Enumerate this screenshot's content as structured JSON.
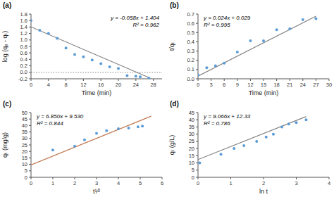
{
  "chart_data": [
    {
      "type": "scatter",
      "title": "(a)",
      "xlabel": "Time (min)",
      "ylabel": "log (qₑ - qₜ)",
      "annotations": [
        "y = -0.058x + 1.404",
        "R² = 0.962"
      ],
      "series": [
        {
          "type": "scatter",
          "color": "#5b9bd5",
          "x": [
            0,
            2,
            4,
            6,
            8,
            10,
            12,
            14,
            16,
            18,
            20,
            22,
            24,
            25,
            27
          ],
          "values": [
            1.6,
            1.3,
            1.2,
            1.05,
            0.75,
            0.55,
            0.48,
            0.38,
            0.27,
            0.17,
            0.12,
            -0.1,
            -0.12,
            -0.14,
            -0.18
          ]
        },
        {
          "type": "line",
          "color": "#808080",
          "x": [
            0,
            27
          ],
          "values": [
            1.404,
            -0.162
          ]
        },
        {
          "type": "line",
          "line_style": "dotted",
          "color": "#808080",
          "x": [
            0,
            30
          ],
          "values": [
            0,
            0
          ]
        }
      ],
      "xlim": [
        0,
        30
      ],
      "ylim": [
        -0.2,
        1.8
      ],
      "xticks": [
        0,
        4,
        8,
        12,
        16,
        20,
        24,
        28
      ],
      "yticks": [
        -0.2,
        {
          "value": 0.0,
          "label": "0.0"
        },
        0.2,
        0.4,
        0.6,
        0.8,
        {
          "value": 1.0,
          "label": "1.0"
        },
        1.2,
        1.4,
        1.6,
        1.8
      ],
      "grid": false
    },
    {
      "type": "scatter",
      "title": "(b)",
      "xlabel": "Time (min)",
      "ylabel": "t/qₜ",
      "annotations": [
        "y = 0.024x + 0.029",
        "R² = 0.995"
      ],
      "series": [
        {
          "type": "scatter",
          "color": "#5b9bd5",
          "x": [
            0,
            2,
            4,
            6,
            9,
            12,
            15,
            18,
            21,
            24,
            27
          ],
          "values": [
            0.04,
            0.12,
            0.14,
            0.17,
            0.29,
            0.41,
            0.41,
            0.53,
            0.54,
            0.64,
            0.65
          ]
        },
        {
          "type": "line",
          "color": "#808080",
          "x": [
            0,
            27
          ],
          "values": [
            0.029,
            0.677
          ]
        }
      ],
      "xlim": [
        0,
        30
      ],
      "ylim": [
        0.0,
        0.7
      ],
      "xticks": [
        0,
        3,
        6,
        9,
        12,
        15,
        18,
        21,
        24,
        27,
        30
      ],
      "yticks": [
        {
          "value": 0.0,
          "label": "0.0"
        },
        0.1,
        0.2,
        0.3,
        0.4,
        0.5,
        0.6,
        0.7
      ],
      "grid": false
    },
    {
      "type": "scatter",
      "title": "(c)",
      "xlabel": "t¹⁄²",
      "ylabel": "qₜ (mg/g)",
      "annotations": [
        "y = 6.850x + 9.530",
        "R² = 0.844"
      ],
      "series": [
        {
          "type": "scatter",
          "color": "#5b9bd5",
          "x": [
            1.0,
            2.0,
            2.45,
            3.0,
            3.46,
            4.0,
            4.47,
            4.9,
            5.1
          ],
          "values": [
            21.0,
            24.0,
            29.0,
            34.0,
            36.0,
            37.5,
            38.0,
            39.0,
            39.5
          ]
        },
        {
          "type": "line",
          "color": "#c07850",
          "x": [
            0,
            5.5
          ],
          "values": [
            9.53,
            47.205
          ]
        }
      ],
      "xlim": [
        0,
        6
      ],
      "ylim": [
        0,
        50
      ],
      "xticks": [
        0,
        1,
        2,
        3,
        4,
        5,
        6
      ],
      "yticks": [
        0,
        5,
        10,
        15,
        20,
        25,
        30,
        35,
        40,
        45,
        50
      ],
      "grid": false
    },
    {
      "type": "scatter",
      "title": "(d)",
      "xlabel": "ln t",
      "ylabel": "qₜ (g/L)",
      "annotations": [
        "y = 9.066x + 12.33",
        "R² = 0.786"
      ],
      "series": [
        {
          "type": "scatter",
          "color": "#5b9bd5",
          "x": [
            0.05,
            0.7,
            1.1,
            1.4,
            1.79,
            2.08,
            2.3,
            2.56,
            2.77,
            3.0,
            3.3
          ],
          "values": [
            10,
            16,
            20,
            22,
            25,
            28,
            30,
            35,
            37,
            38,
            40
          ]
        },
        {
          "type": "line",
          "color": "#808080",
          "x": [
            0,
            3.3
          ],
          "values": [
            12.33,
            42.25
          ]
        }
      ],
      "xlim": [
        0,
        4
      ],
      "ylim": [
        0,
        45
      ],
      "xticks": [
        0,
        1,
        2,
        3,
        4
      ],
      "yticks": [
        0,
        5,
        10,
        15,
        20,
        25,
        30,
        35,
        40,
        45
      ],
      "grid": false
    }
  ]
}
